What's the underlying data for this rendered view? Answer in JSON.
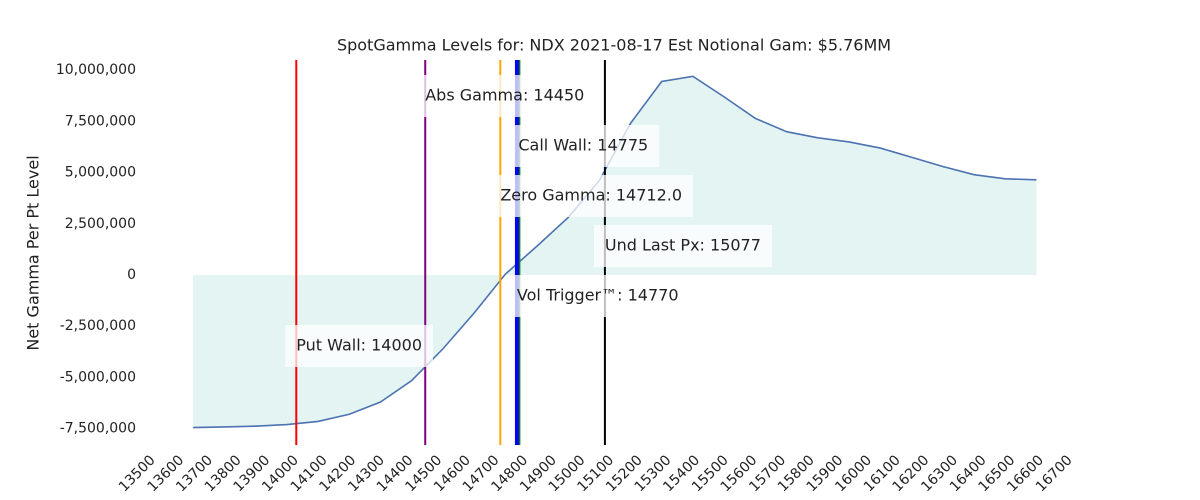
{
  "chart_data": {
    "type": "area",
    "title": "SpotGamma Levels for: NDX  2021-08-17 Est Notional Gam: $5.76MM",
    "y_label": "Net Gamma Per Pt Level",
    "x": [
      13640,
      13749,
      13858,
      13967,
      14076,
      14185,
      14294,
      14403,
      14512,
      14621,
      14730,
      14839,
      14948,
      15057,
      15166,
      15275,
      15384,
      15493,
      15602,
      15711,
      15820,
      15929,
      16038,
      16147,
      16256,
      16365,
      16474,
      16583
    ],
    "values": [
      -7450000,
      -7420000,
      -7380000,
      -7300000,
      -7150000,
      -6800000,
      -6200000,
      -5150000,
      -3600000,
      -1850000,
      50000,
      1400000,
      2800000,
      4600000,
      7400000,
      9450000,
      9700000,
      8700000,
      7650000,
      7000000,
      6700000,
      6500000,
      6200000,
      5750000,
      5300000,
      4900000,
      4700000,
      4650000
    ],
    "color": "#4c72b0",
    "fill_color": "#e3f4f2",
    "xlim": [
      13500,
      16700
    ],
    "xticks": [
      13500,
      13600,
      13700,
      13800,
      13900,
      14000,
      14100,
      14200,
      14300,
      14400,
      14500,
      14600,
      14700,
      14800,
      14900,
      15000,
      15100,
      15200,
      15300,
      15400,
      15500,
      15600,
      15700,
      15800,
      15900,
      16000,
      16100,
      16200,
      16300,
      16400,
      16500,
      16600,
      16700
    ],
    "ylim": [
      -8300000,
      10500000
    ],
    "yticks": [
      {
        "value": -7500000,
        "label": "-7,500,000"
      },
      {
        "value": -5000000,
        "label": "-5,000,000"
      },
      {
        "value": -2500000,
        "label": "-2,500,000"
      },
      0,
      {
        "value": 2500000,
        "label": "2,500,000"
      },
      {
        "value": 5000000,
        "label": "5,000,000"
      },
      {
        "value": 7500000,
        "label": "7,500,000"
      },
      {
        "value": 10000000,
        "label": "10,000,000"
      }
    ],
    "levels": [
      {
        "label": "Abs Gamma: 14450",
        "value": 14450,
        "color": "#800080"
      },
      {
        "label": "Call Wall: 14775",
        "value": 14775,
        "color": "#008000"
      },
      {
        "label": "Zero Gamma: 14712.0",
        "value": 14712,
        "color": "#ffa500"
      },
      {
        "label": "Und Last Px: 15077",
        "value": 15077,
        "color": "#000000"
      },
      {
        "label": "Vol Trigger™: 14770",
        "value": 14770,
        "color": "#0000ff"
      },
      {
        "label": "Put Wall: 14000",
        "value": 14000,
        "color": "#ff0000"
      }
    ]
  }
}
